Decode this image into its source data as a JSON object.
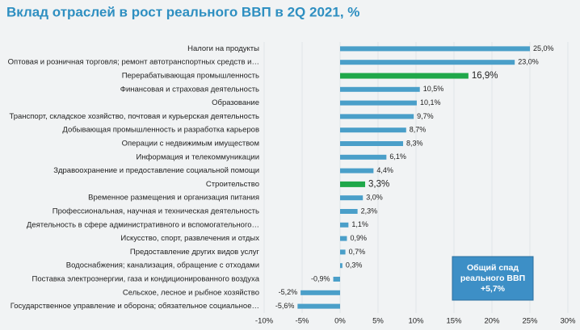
{
  "chart_data": {
    "type": "hbar",
    "title": "Вклад отраслей в рост реального ВВП в 2Q 2021, %",
    "categories": [
      "Налоги на продукты",
      "Оптовая и розничная торговля; ремонт автотранспортных средств и…",
      "Перерабатывающая промышленность",
      "Финансовая и страховая деятельность",
      "Образование",
      "Транспорт, складское хозяйство, почтовая и курьерская деятельность",
      "Добывающая промышленность и разработка карьеров",
      "Операции с недвижимым имуществом",
      "Информация и телекоммуникации",
      "Здравоохранение и предоставление социальной помощи",
      "Строительство",
      "Временное размещения и организация питания",
      "Профессиональная, научная и техническая деятельность",
      "Деятельность в сфере административного и вспомогательного…",
      "Искусство, спорт, развлечения и отдых",
      "Предоставление других видов услуг",
      "Водоснабжения; канализация, обращение с отходами",
      "Поставка электроэнергии, газа и кондиционированного воздуха",
      "Сельское, лесное и рыбное хозяйство",
      "Государственное управление и оборона; обязательное социальное…"
    ],
    "values": [
      25.0,
      23.0,
      16.9,
      10.5,
      10.1,
      9.7,
      8.7,
      8.3,
      6.1,
      4.4,
      3.3,
      3.0,
      2.3,
      1.1,
      0.9,
      0.7,
      0.3,
      -0.9,
      -5.2,
      -5.6
    ],
    "value_labels": [
      "25,0%",
      "23,0%",
      "16,9%",
      "10,5%",
      "10,1%",
      "9,7%",
      "8,7%",
      "8,3%",
      "6,1%",
      "4,4%",
      "3,3%",
      "3,0%",
      "2,3%",
      "1,1%",
      "0,9%",
      "0,7%",
      "0,3%",
      "-0,9%",
      "-5,2%",
      "-5,6%"
    ],
    "colors": [
      "#4a9fc9",
      "#4a9fc9",
      "#1fa84a",
      "#4a9fc9",
      "#4a9fc9",
      "#4a9fc9",
      "#4a9fc9",
      "#4a9fc9",
      "#4a9fc9",
      "#4a9fc9",
      "#1fa84a",
      "#4a9fc9",
      "#4a9fc9",
      "#4a9fc9",
      "#4a9fc9",
      "#4a9fc9",
      "#4a9fc9",
      "#4a9fc9",
      "#4a9fc9",
      "#4a9fc9"
    ],
    "xlim": [
      -10,
      30
    ],
    "xticks": [
      {
        "value": -10,
        "label": "-10%"
      },
      {
        "value": -5,
        "label": "-5%"
      },
      {
        "value": 0,
        "label": "0%"
      },
      {
        "value": 5,
        "label": "5%"
      },
      {
        "value": 10,
        "label": "10%"
      },
      {
        "value": 15,
        "label": "15%"
      },
      {
        "value": 20,
        "label": "20%"
      },
      {
        "value": 25,
        "label": "25%"
      },
      {
        "value": 30,
        "label": "30%"
      }
    ],
    "grid": true,
    "annotation": [
      "Общий спад",
      "реального ВВП",
      "+5,7%"
    ]
  }
}
